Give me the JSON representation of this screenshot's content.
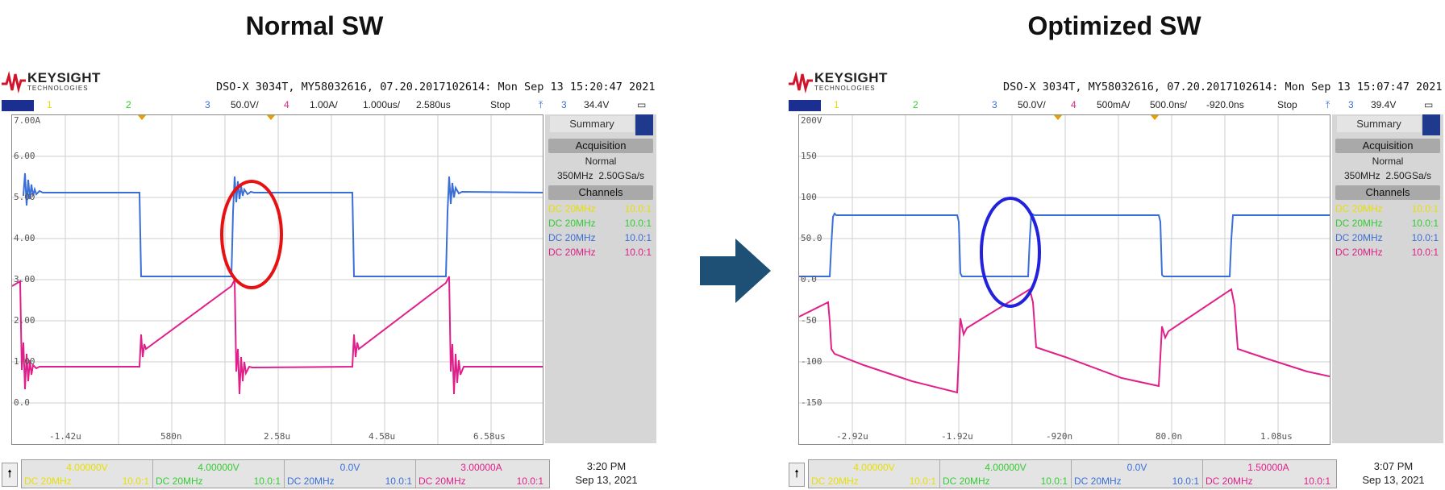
{
  "headings": {
    "left": "Normal SW",
    "right": "Optimized SW"
  },
  "colors": {
    "ch1": "#e8e000",
    "ch2": "#33cc33",
    "ch3": "#3a6fd8",
    "ch4": "#e0208a",
    "arrow": "#1e4f74",
    "left_marker": "#e81010",
    "right_marker": "#2222dd"
  },
  "arrow_icon": "right-arrow-icon",
  "logo": {
    "brand": "KEYSIGHT",
    "tagline": "TECHNOLOGIES"
  },
  "scopes": [
    {
      "header": "DSO-X 3034T, MY58032616, 07.20.2017102614: Mon Sep 13 15:20:47 2021",
      "status": {
        "ch1": "1",
        "ch2": "2",
        "ch3": "3",
        "ch3_scale": "50.0V/",
        "ch4": "4",
        "ch4_scale": "1.00A/",
        "timebase": "1.000us/",
        "delay": "2.580us",
        "run": "Stop",
        "trig_icon": "trigger-rising-icon",
        "trig_ch": "3",
        "trig_level": "34.4V"
      },
      "y_labels": [
        "7.00A",
        "6.00",
        "5.00",
        "4.00",
        "3.00",
        "2.00",
        "1.00",
        "0.0"
      ],
      "x_labels": [
        "-1.42u",
        "580n",
        "2.58u",
        "4.58u",
        "6.58us"
      ],
      "side": {
        "summary": "Summary",
        "acquisition": "Acquisition",
        "mode": "Normal",
        "bw": "350MHz",
        "rate": "2.50GSa/s",
        "channels": "Channels",
        "rows": [
          {
            "c": "DC  20MHz",
            "p": "10.0:1"
          },
          {
            "c": "DC  20MHz",
            "p": "10.0:1"
          },
          {
            "c": "DC  20MHz",
            "p": "10.0:1"
          },
          {
            "c": "DC  20MHz",
            "p": "10.0:1"
          }
        ]
      },
      "bottom": {
        "cells": [
          {
            "v": "4.00000V",
            "c": "DC  20MHz",
            "p": "10.0:1"
          },
          {
            "v": "4.00000V",
            "c": "DC 20MHz",
            "p": "10.0:1"
          },
          {
            "v": "0.0V",
            "c": "DC 20MHz",
            "p": "10.0:1"
          },
          {
            "v": "3.00000A",
            "c": "DC 20MHz",
            "p": "10.0:1"
          }
        ],
        "time": "3:20 PM",
        "date": "Sep 13, 2021"
      }
    },
    {
      "header": "DSO-X 3034T, MY58032616, 07.20.2017102614: Mon Sep 13 15:07:47 2021",
      "status": {
        "ch1": "1",
        "ch2": "2",
        "ch3": "3",
        "ch3_scale": "50.0V/",
        "ch4": "4",
        "ch4_scale": "500mA/",
        "timebase": "500.0ns/",
        "delay": "-920.0ns",
        "run": "Stop",
        "trig_icon": "trigger-rising-icon",
        "trig_ch": "3",
        "trig_level": "39.4V"
      },
      "y_labels": [
        "200V",
        "150",
        "100",
        "50.0",
        "0.0",
        "-50",
        "-100",
        "-150"
      ],
      "x_labels": [
        "-2.92u",
        "-1.92u",
        "-920n",
        "80.0n",
        "1.08us"
      ],
      "side": {
        "summary": "Summary",
        "acquisition": "Acquisition",
        "mode": "Normal",
        "bw": "350MHz",
        "rate": "2.50GSa/s",
        "channels": "Channels",
        "rows": [
          {
            "c": "DC  20MHz",
            "p": "10.0:1"
          },
          {
            "c": "DC  20MHz",
            "p": "10.0:1"
          },
          {
            "c": "DC  20MHz",
            "p": "10.0:1"
          },
          {
            "c": "DC  20MHz",
            "p": "10.0:1"
          }
        ]
      },
      "bottom": {
        "cells": [
          {
            "v": "4.00000V",
            "c": "DC  20MHz",
            "p": "10.0:1"
          },
          {
            "v": "4.00000V",
            "c": "DC 20MHz",
            "p": "10.0:1"
          },
          {
            "v": "0.0V",
            "c": "DC 20MHz",
            "p": "10.0:1"
          },
          {
            "v": "1.50000A",
            "c": "DC 20MHz",
            "p": "10.0:1"
          }
        ],
        "time": "3:07 PM",
        "date": "Sep 13, 2021"
      }
    }
  ]
}
